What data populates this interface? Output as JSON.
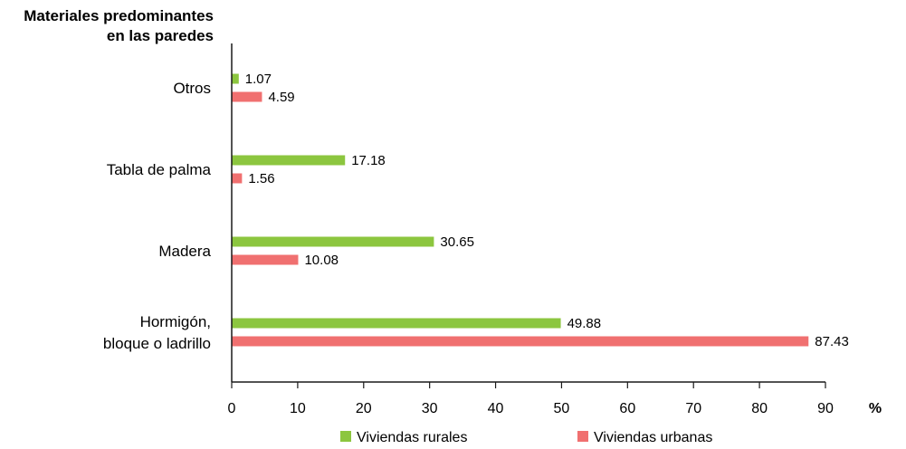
{
  "chart_data": {
    "type": "bar",
    "orientation": "horizontal",
    "ylabel": [
      "Materiales predominantes",
      "en las paredes"
    ],
    "xlabel": "%",
    "categories": [
      [
        "Otros"
      ],
      [
        "Tabla de palma"
      ],
      [
        "Madera"
      ],
      [
        "Hormigón,",
        "bloque o ladrillo"
      ]
    ],
    "series": [
      {
        "name": "Viviendas rurales",
        "color": "#8cc63f",
        "values": [
          1.07,
          17.18,
          30.65,
          49.88
        ]
      },
      {
        "name": "Viviendas urbanas",
        "color": "#f07070",
        "values": [
          4.59,
          1.56,
          10.08,
          87.43
        ]
      }
    ],
    "xlim": [
      0,
      90
    ],
    "xticks": [
      "0",
      "10",
      "20",
      "30",
      "40",
      "50",
      "60",
      "70",
      "80",
      "90"
    ],
    "grid": false,
    "legend_position": "bottom"
  }
}
